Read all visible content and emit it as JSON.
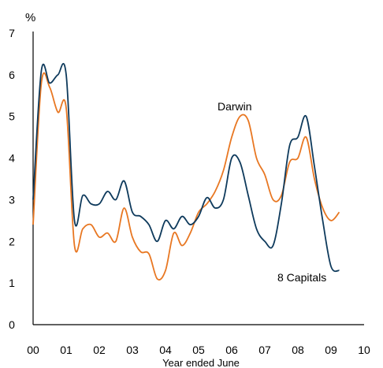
{
  "chart_data": {
    "type": "line",
    "title": "",
    "ylabel": "%",
    "xlabel": "Year ended June",
    "ylim": [
      0,
      7
    ],
    "yticks": [
      "0",
      "1",
      "2",
      "3",
      "4",
      "5",
      "6",
      "7"
    ],
    "xlim": [
      0,
      10
    ],
    "xticks": [
      "00",
      "01",
      "02",
      "03",
      "04",
      "05",
      "06",
      "07",
      "08",
      "09",
      "10"
    ],
    "grid": false,
    "legend": "none (series labelled directly)",
    "series": [
      {
        "name": "Darwin",
        "color": "#E87722",
        "x": [
          0.0,
          0.25,
          0.5,
          0.75,
          1.0,
          1.25,
          1.5,
          1.75,
          2.0,
          2.25,
          2.5,
          2.75,
          3.0,
          3.25,
          3.5,
          3.75,
          4.0,
          4.25,
          4.5,
          4.75,
          5.0,
          5.25,
          5.5,
          5.75,
          6.0,
          6.25,
          6.5,
          6.75,
          7.0,
          7.25,
          7.5,
          7.75,
          8.0,
          8.25,
          8.5,
          8.75,
          9.0,
          9.25
        ],
        "values": [
          2.4,
          5.8,
          5.7,
          5.1,
          5.2,
          1.9,
          2.3,
          2.4,
          2.1,
          2.2,
          2.0,
          2.8,
          2.1,
          1.75,
          1.7,
          1.1,
          1.3,
          2.2,
          1.9,
          2.2,
          2.7,
          2.9,
          3.2,
          3.7,
          4.5,
          5.0,
          4.9,
          4.0,
          3.6,
          3.0,
          3.1,
          3.9,
          4.0,
          4.5,
          3.5,
          2.8,
          2.5,
          2.7
        ]
      },
      {
        "name": "8 Capitals",
        "color": "#0E3A5C",
        "x": [
          0.0,
          0.25,
          0.5,
          0.75,
          1.0,
          1.25,
          1.5,
          1.75,
          2.0,
          2.25,
          2.5,
          2.75,
          3.0,
          3.25,
          3.5,
          3.75,
          4.0,
          4.25,
          4.5,
          4.75,
          5.0,
          5.25,
          5.5,
          5.75,
          6.0,
          6.25,
          6.5,
          6.75,
          7.0,
          7.25,
          7.5,
          7.75,
          8.0,
          8.25,
          8.5,
          8.75,
          9.0,
          9.25
        ],
        "values": [
          3.0,
          6.1,
          5.8,
          6.0,
          6.0,
          2.5,
          3.1,
          2.9,
          2.9,
          3.2,
          3.0,
          3.45,
          2.7,
          2.6,
          2.4,
          2.0,
          2.5,
          2.3,
          2.6,
          2.4,
          2.6,
          3.05,
          2.8,
          3.0,
          4.0,
          3.9,
          3.1,
          2.3,
          2.0,
          1.9,
          2.9,
          4.3,
          4.5,
          5.0,
          3.8,
          2.5,
          1.4,
          1.3
        ]
      }
    ]
  }
}
